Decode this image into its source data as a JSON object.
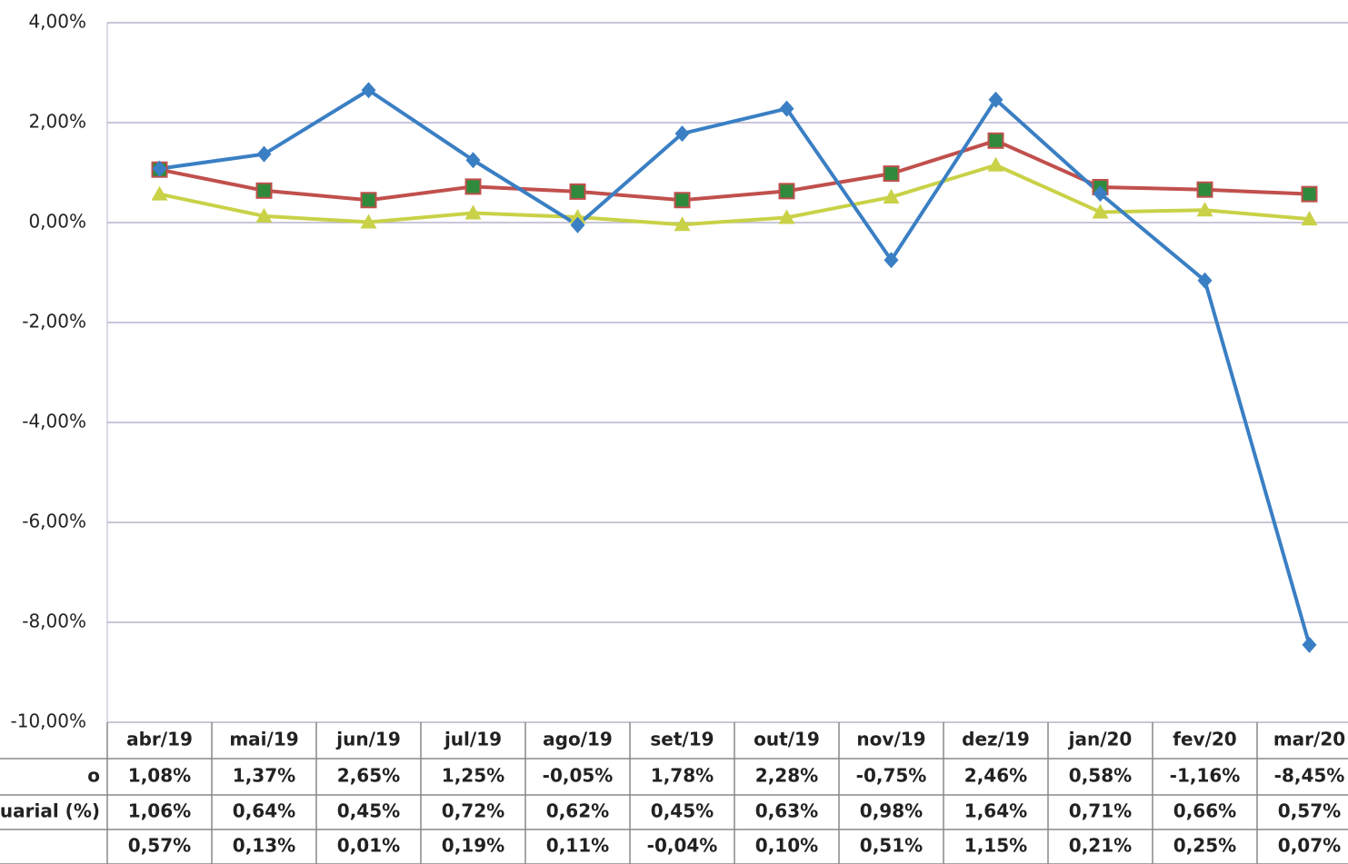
{
  "chart_data": {
    "type": "line",
    "categories": [
      "abr/19",
      "mai/19",
      "jun/19",
      "jul/19",
      "ago/19",
      "set/19",
      "out/19",
      "nov/19",
      "dez/19",
      "jan/20",
      "fev/20",
      "mar/20"
    ],
    "series": [
      {
        "name": "o",
        "color": "#3a7fc4",
        "marker": "diamond",
        "values": [
          1.08,
          1.37,
          2.65,
          1.25,
          -0.05,
          1.78,
          2.28,
          -0.75,
          2.46,
          0.58,
          -1.16,
          -8.45
        ],
        "value_labels": [
          "1,08%",
          "1,37%",
          "2,65%",
          "1,25%",
          "-0,05%",
          "1,78%",
          "2,28%",
          "-0,75%",
          "2,46%",
          "0,58%",
          "-1,16%",
          "-8,45%"
        ]
      },
      {
        "name": "tuarial (%)",
        "color": "#c0504d",
        "marker": "square",
        "marker_color": "#2f8a3c",
        "values": [
          1.06,
          0.64,
          0.45,
          0.72,
          0.62,
          0.45,
          0.63,
          0.98,
          1.64,
          0.71,
          0.66,
          0.57
        ],
        "value_labels": [
          "1,06%",
          "0,64%",
          "0,45%",
          "0,72%",
          "0,62%",
          "0,45%",
          "0,63%",
          "0,98%",
          "1,64%",
          "0,71%",
          "0,66%",
          "0,57%"
        ]
      },
      {
        "color": "#c9d147",
        "marker": "triangle",
        "values": [
          0.57,
          0.13,
          0.01,
          0.19,
          0.11,
          -0.04,
          0.1,
          0.51,
          1.15,
          0.21,
          0.25,
          0.07
        ],
        "value_labels": [
          "0,57%",
          "0,13%",
          "0,01%",
          "0,19%",
          "0,11%",
          "-0,04%",
          "0,10%",
          "0,51%",
          "1,15%",
          "0,21%",
          "0,25%",
          "0,07%"
        ]
      }
    ],
    "ylim": [
      -10,
      4
    ],
    "yticks": [
      {
        "value": -10,
        "label": "-10,00%"
      },
      {
        "value": -8,
        "label": "-8,00%"
      },
      {
        "value": -6,
        "label": "-6,00%"
      },
      {
        "value": -4,
        "label": "-4,00%"
      },
      {
        "value": -2,
        "label": "-2,00%"
      },
      {
        "value": 0,
        "label": "0,00%"
      },
      {
        "value": 2,
        "label": "2,00%"
      },
      {
        "value": 4,
        "label": "4,00%"
      }
    ],
    "grid": true
  }
}
